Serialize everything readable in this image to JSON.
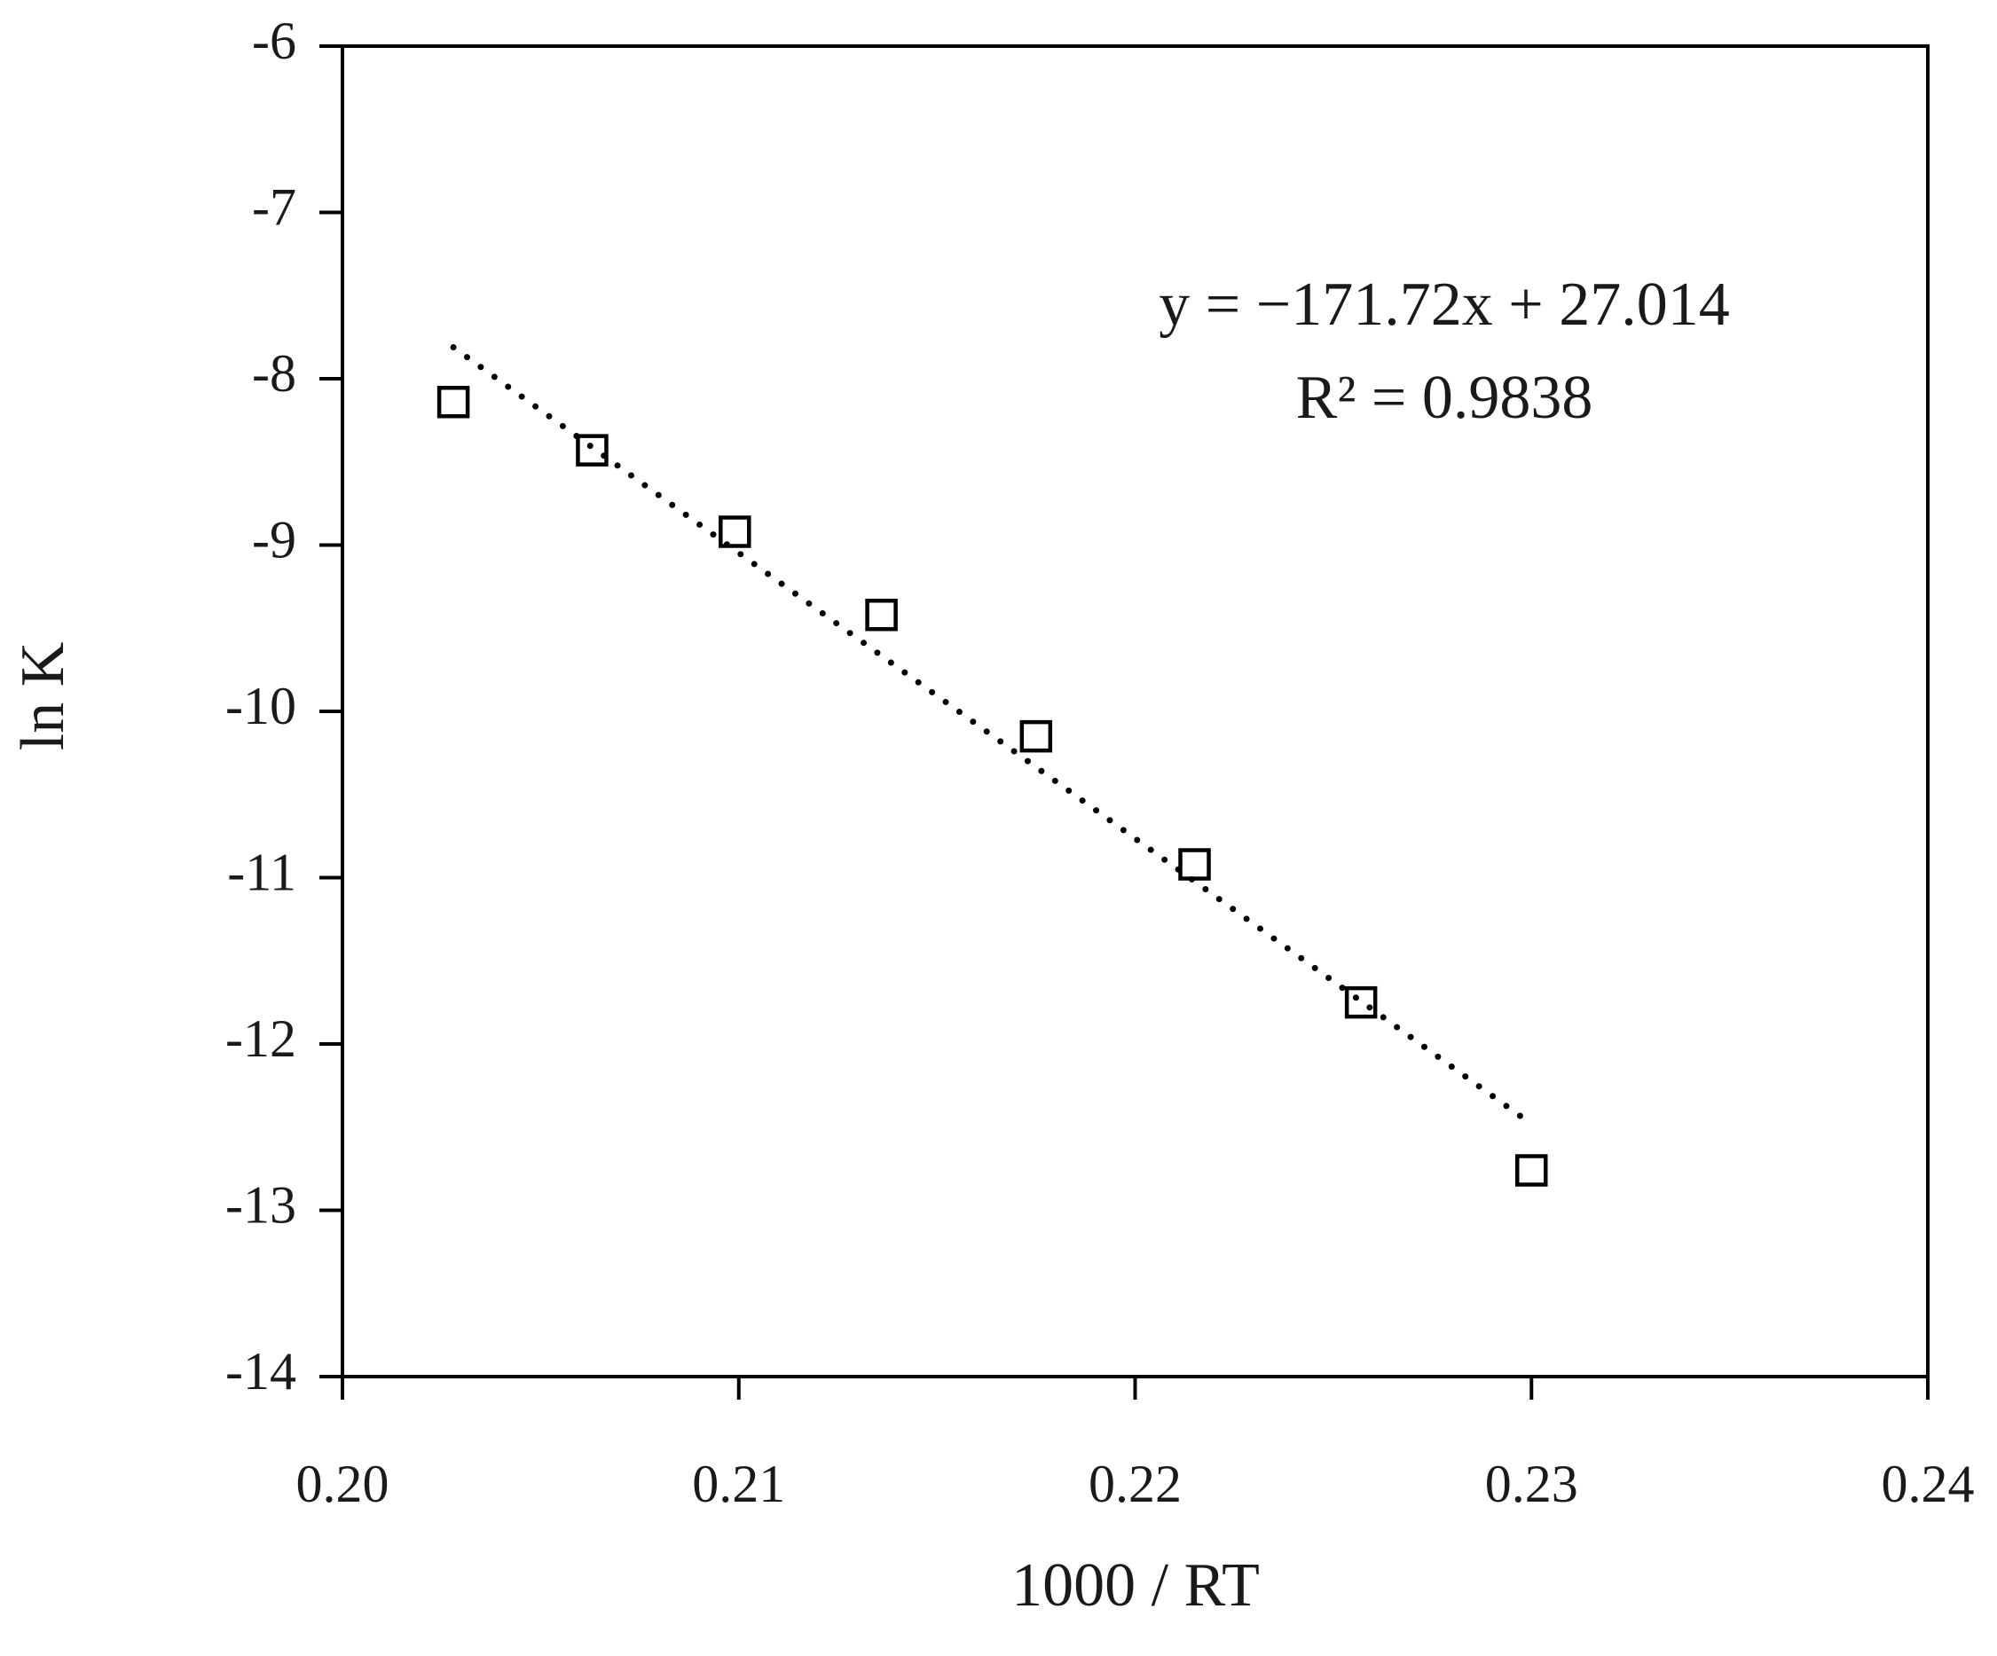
{
  "chart_data": {
    "type": "scatter",
    "xlabel": "1000 / RT",
    "ylabel": "ln K",
    "x": [
      0.2028,
      0.2063,
      0.2099,
      0.2136,
      0.2175,
      0.2215,
      0.2257,
      0.23
    ],
    "values": [
      -8.14,
      -8.43,
      -8.92,
      -9.42,
      -10.15,
      -10.92,
      -11.75,
      -12.76
    ],
    "color": "#000000",
    "xlim": [
      0.2,
      0.24
    ],
    "xticks": [
      {
        "value": 0.2,
        "label": "0.20"
      },
      0.21,
      0.22,
      0.23,
      0.24
    ],
    "ylim": [
      -14,
      -6
    ],
    "yticks": [
      -6,
      -7,
      -8,
      -9,
      -10,
      -11,
      -12,
      -13,
      -14
    ],
    "grid": false,
    "trendline": {
      "slope": -171.72,
      "intercept": 27.014,
      "equation": "y = −171.72x + 27.014",
      "r_squared_label": "R² = 0.9838"
    }
  }
}
